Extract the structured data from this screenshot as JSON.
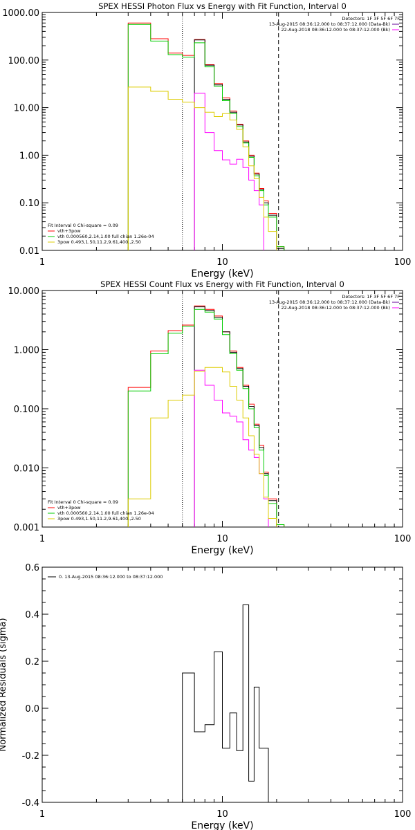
{
  "chart_data": [
    {
      "type": "line",
      "title": "SPEX HESSI Photon Flux vs Energy with Fit Function, Interval 0",
      "xlabel": "Energy (keV)",
      "ylabel": "",
      "xscale": "log",
      "yscale": "log",
      "xlim": [
        1,
        100
      ],
      "ylim": [
        0.01,
        1000
      ],
      "xticks": [
        "1",
        "10",
        "100"
      ],
      "yticks": [
        "0.01",
        "0.10",
        "1.00",
        "10.00",
        "100.00",
        "1000.00"
      ],
      "legend_top_right": {
        "header": "Detectors: 1F 3F 5F 6F 7F",
        "lines": [
          "13-Aug-2015 08:36:12.000 to 08:37:12.000 (Data-Bk)",
          "22-Aug-2018 08:36:12.000 to 08:37:12.000 (Bk)"
        ]
      },
      "legend_bottom_left": {
        "header": "Fit Interval 0   Chi-square = 0.09",
        "lines": [
          "vth+3pow",
          "vth 0.000560,2.14,1.00   full chian 1.26e-04",
          "3pow 0.493,1.50,11.2,9.61,400.,2.50"
        ]
      },
      "vlines": [
        {
          "x": 6.0,
          "style": "dotted"
        },
        {
          "x": 20.5,
          "style": "dashed"
        }
      ],
      "edges": [
        3.0,
        4.0,
        5.0,
        6.0,
        7.0,
        8.0,
        9.0,
        10.0,
        11.0,
        12.0,
        13.0,
        14.0,
        15.0,
        16.0,
        17.0,
        18.0,
        20.0,
        22.0,
        24.0
      ],
      "series": [
        {
          "name": "",
          "color": "#ff0000",
          "values": [
            600,
            280,
            140,
            125,
            270,
            80,
            32,
            16,
            8.5,
            4.5,
            2.0,
            1.0,
            0.42,
            0.2,
            0.11,
            0.06,
            0.012,
            null
          ]
        },
        {
          "name": "",
          "color": "#000000",
          "values": [
            null,
            null,
            null,
            null,
            265,
            78,
            30,
            15,
            8.0,
            4.3,
            1.9,
            0.95,
            0.4,
            0.19,
            0.1,
            0.055,
            0.011,
            null
          ]
        },
        {
          "name": "vth+3pow",
          "color": "#00cc00",
          "values": [
            560,
            250,
            130,
            115,
            230,
            72,
            28,
            14,
            7.5,
            4.0,
            1.8,
            0.9,
            0.37,
            0.18,
            0.09,
            0.05,
            0.012,
            null
          ]
        },
        {
          "name": "vth",
          "color": "#ff00ff",
          "values": [
            null,
            null,
            null,
            null,
            20,
            3.0,
            1.25,
            0.8,
            0.65,
            0.82,
            0.55,
            0.3,
            0.18,
            0.09,
            null,
            null,
            null,
            null
          ]
        },
        {
          "name": "3pow",
          "color": "#ddcc00",
          "values": [
            27,
            22,
            15,
            13,
            10,
            8,
            6.5,
            7.5,
            5.5,
            3.5,
            1.5,
            0.6,
            0.32,
            0.13,
            0.05,
            0.025,
            null,
            null
          ]
        }
      ]
    },
    {
      "type": "line",
      "title": "SPEX HESSI Count Flux vs Energy with Fit Function, Interval 0",
      "xlabel": "Energy (keV)",
      "ylabel": "",
      "xscale": "log",
      "yscale": "log",
      "xlim": [
        1,
        100
      ],
      "ylim": [
        0.001,
        10
      ],
      "xticks": [
        "1",
        "10",
        "100"
      ],
      "yticks": [
        "0.001",
        "0.010",
        "0.100",
        "1.000",
        "10.000"
      ],
      "legend_top_right": {
        "header": "Detectors: 1F 3F 5F 6F 7F",
        "lines": [
          "13-Aug-2015 08:36:12.000 to 08:37:12.000 (Data-Bk)",
          "22-Aug-2018 08:36:12.000 to 08:37:12.000 (Bk)"
        ]
      },
      "legend_bottom_left": {
        "header": "Fit Interval 0   Chi-square = 0.09",
        "lines": [
          "vth+3pow",
          "vth 0.000560,2.14,1.00   full chian 1.26e-04",
          "3pow 0.493,1.50,11.2,9.61,400.,2.50"
        ]
      },
      "vlines": [
        {
          "x": 6.0,
          "style": "dotted"
        },
        {
          "x": 20.5,
          "style": "dashed"
        }
      ],
      "edges": [
        3.0,
        4.0,
        5.0,
        6.0,
        7.0,
        8.0,
        9.0,
        10.0,
        11.0,
        12.0,
        13.0,
        14.0,
        15.0,
        16.0,
        17.0,
        18.0,
        20.0,
        22.0,
        24.0
      ],
      "series": [
        {
          "name": "",
          "color": "#ff0000",
          "values": [
            0.23,
            0.95,
            2.1,
            2.6,
            5.5,
            4.8,
            3.7,
            2.0,
            0.95,
            0.5,
            0.25,
            0.12,
            0.055,
            0.024,
            0.0085,
            0.003,
            0.0011,
            null
          ]
        },
        {
          "name": "",
          "color": "#000000",
          "values": [
            null,
            null,
            null,
            null,
            5.3,
            4.6,
            3.5,
            2.0,
            0.9,
            0.48,
            0.24,
            0.11,
            0.052,
            0.022,
            0.008,
            0.0028,
            null,
            null
          ]
        },
        {
          "name": "vth+3pow",
          "color": "#00cc00",
          "values": [
            0.2,
            0.85,
            1.9,
            2.5,
            4.8,
            4.3,
            3.3,
            1.8,
            0.85,
            0.45,
            0.22,
            0.1,
            0.048,
            0.02,
            0.0075,
            0.0025,
            0.0011,
            null
          ]
        },
        {
          "name": "vth",
          "color": "#ff00ff",
          "values": [
            null,
            null,
            null,
            null,
            0.45,
            0.25,
            0.14,
            0.085,
            0.075,
            0.06,
            0.03,
            0.02,
            0.015,
            0.008,
            0.003,
            null,
            null,
            null
          ]
        },
        {
          "name": "3pow",
          "color": "#ddcc00",
          "values": [
            0.003,
            0.07,
            0.14,
            0.17,
            0.43,
            0.5,
            0.5,
            0.42,
            0.24,
            0.14,
            0.07,
            0.035,
            0.017,
            0.008,
            0.0032,
            0.0014,
            null,
            null
          ]
        }
      ]
    },
    {
      "type": "line",
      "title": "",
      "xlabel": "Energy (keV)",
      "ylabel": "Normalized Residuals (sigma)",
      "xscale": "log",
      "yscale": "linear",
      "xlim": [
        1,
        100
      ],
      "ylim": [
        -0.4,
        0.6
      ],
      "xticks": [
        "1",
        "10",
        "100"
      ],
      "yticks": [
        "-0.4",
        "-0.2",
        "0.0",
        "0.2",
        "0.4",
        "0.6"
      ],
      "legend": "0. 13-Aug-2015 08:36:12.000 to 08:37:12.000",
      "edges": [
        6.0,
        7.0,
        8.0,
        9.0,
        10.0,
        11.0,
        12.0,
        13.0,
        14.0,
        15.0,
        16.0,
        17.0,
        18.0,
        20.0
      ],
      "series": [
        {
          "name": "0. 13-Aug-2015 08:36:12.000 to 08:37:12.000",
          "color": "#000000",
          "values": [
            0.15,
            -0.1,
            -0.07,
            0.24,
            -0.17,
            -0.02,
            -0.18,
            0.44,
            -0.31,
            0.09,
            -0.17,
            -0.17,
            null
          ]
        }
      ]
    }
  ]
}
